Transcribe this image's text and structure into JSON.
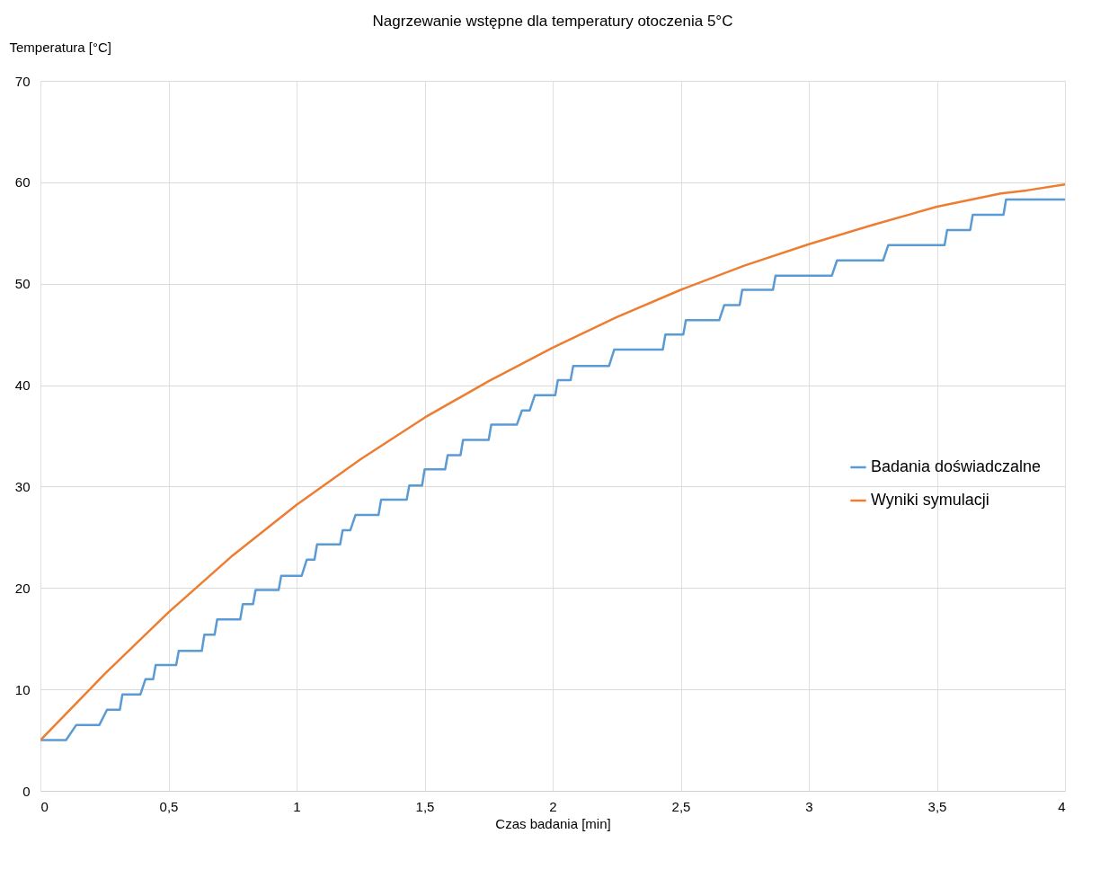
{
  "chart_data": {
    "type": "line",
    "title": "Nagrzewanie wstępne dla temperatury otoczenia 5°C",
    "xlabel": "Czas badania [min]",
    "ylabel": "Temperatura [°C]",
    "xlim": [
      0,
      4
    ],
    "xticks": [
      0,
      {
        "value": 0.5,
        "label": "0,5"
      },
      1,
      {
        "value": 1.5,
        "label": "1,5"
      },
      2,
      {
        "value": 2.5,
        "label": "2,5"
      },
      3,
      {
        "value": 3.5,
        "label": "3,5"
      },
      4
    ],
    "ylim": [
      0,
      70
    ],
    "yticks": [
      0,
      10,
      20,
      30,
      40,
      50,
      60,
      70
    ],
    "grid": true,
    "legend": "right",
    "marker": "none",
    "line_style": "solid",
    "series": [
      {
        "name": "Badania doświadczalne",
        "color": "#5b9bd5",
        "x": [
          0,
          0.1,
          0.14,
          0.23,
          0.26,
          0.31,
          0.32,
          0.39,
          0.41,
          0.44,
          0.45,
          0.53,
          0.54,
          0.63,
          0.64,
          0.68,
          0.69,
          0.78,
          0.79,
          0.83,
          0.84,
          0.93,
          0.94,
          1.02,
          1.04,
          1.07,
          1.08,
          1.17,
          1.18,
          1.21,
          1.23,
          1.32,
          1.33,
          1.43,
          1.44,
          1.49,
          1.5,
          1.58,
          1.59,
          1.64,
          1.65,
          1.75,
          1.76,
          1.86,
          1.88,
          1.91,
          1.93,
          2.01,
          2.02,
          2.07,
          2.08,
          2.22,
          2.24,
          2.43,
          2.44,
          2.51,
          2.52,
          2.65,
          2.67,
          2.73,
          2.74,
          2.86,
          2.87,
          3.09,
          3.11,
          3.29,
          3.31,
          3.53,
          3.54,
          3.63,
          3.64,
          3.76,
          3.77,
          4.0
        ],
        "values": [
          5,
          5,
          6.5,
          6.5,
          8,
          8,
          9.5,
          9.5,
          11,
          11,
          12.4,
          12.4,
          13.8,
          13.8,
          15.4,
          15.4,
          16.9,
          16.9,
          18.4,
          18.4,
          19.8,
          19.8,
          21.2,
          21.2,
          22.8,
          22.8,
          24.3,
          24.3,
          25.7,
          25.7,
          27.2,
          27.2,
          28.7,
          28.7,
          30.1,
          30.1,
          31.7,
          31.7,
          33.1,
          33.1,
          34.6,
          34.6,
          36.1,
          36.1,
          37.5,
          37.5,
          39,
          39,
          40.5,
          40.5,
          41.9,
          41.9,
          43.5,
          43.5,
          45,
          45,
          46.4,
          46.4,
          47.9,
          47.9,
          49.4,
          49.4,
          50.8,
          50.8,
          52.3,
          52.3,
          53.8,
          53.8,
          55.3,
          55.3,
          56.8,
          56.8,
          58.3,
          58.3
        ]
      },
      {
        "name": "Wyniki symulacji",
        "color": "#ed7d31",
        "x": [
          0,
          0.25,
          0.5,
          0.75,
          1,
          1.25,
          1.5,
          1.75,
          2,
          2.25,
          2.5,
          2.75,
          3,
          3.25,
          3.5,
          3.75,
          3.85,
          4
        ],
        "values": [
          5,
          11.5,
          17.6,
          23.2,
          28.2,
          32.7,
          36.8,
          40.4,
          43.7,
          46.7,
          49.4,
          51.8,
          53.9,
          55.8,
          57.6,
          58.9,
          59.2,
          59.8
        ]
      }
    ]
  }
}
